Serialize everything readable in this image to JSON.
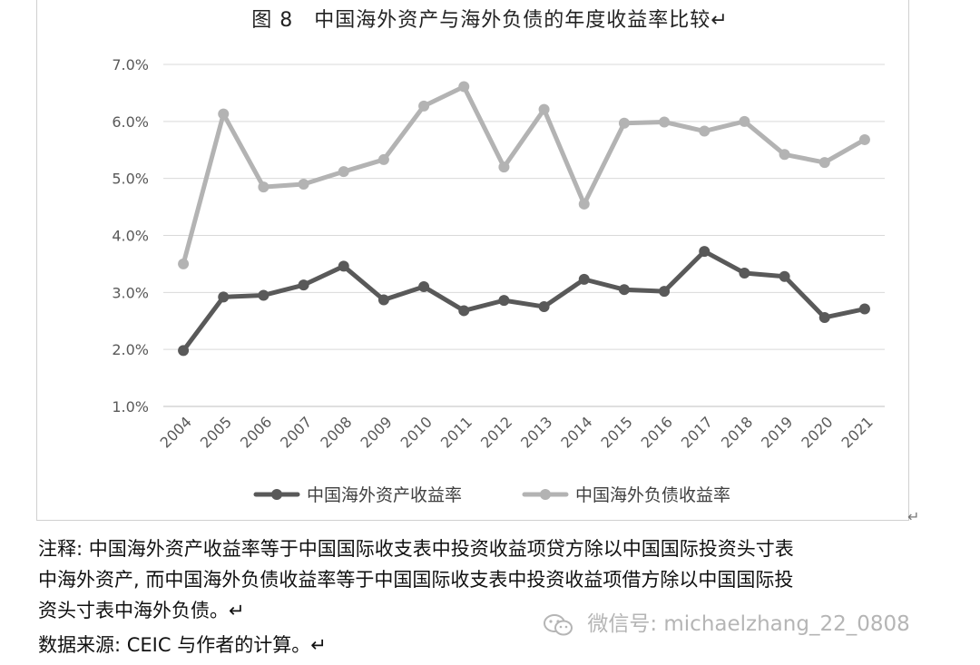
{
  "figure": {
    "title": "图 8　中国海外资产与海外负债的年度收益率比较↵"
  },
  "chart_data": {
    "type": "line",
    "title": "",
    "xlabel": "",
    "ylabel": "",
    "categories": [
      "2004",
      "2005",
      "2006",
      "2007",
      "2008",
      "2009",
      "2010",
      "2011",
      "2012",
      "2013",
      "2014",
      "2015",
      "2016",
      "2017",
      "2018",
      "2019",
      "2020",
      "2021"
    ],
    "y_ticks": [
      "1.0%",
      "2.0%",
      "3.0%",
      "4.0%",
      "5.0%",
      "6.0%",
      "7.0%"
    ],
    "ylim": [
      1.0,
      7.0
    ],
    "y_unit": "%",
    "grid": "horizontal",
    "legend_position": "bottom",
    "series": [
      {
        "name": "中国海外资产收益率",
        "color": "#595959",
        "values": [
          1.98,
          2.92,
          2.95,
          3.13,
          3.46,
          2.87,
          3.1,
          2.68,
          2.86,
          2.75,
          3.23,
          3.05,
          3.02,
          3.72,
          3.34,
          3.28,
          2.56,
          2.71
        ]
      },
      {
        "name": "中国海外负债收益率",
        "color": "#b3b3b3",
        "values": [
          3.5,
          6.13,
          4.85,
          4.9,
          5.12,
          5.33,
          6.27,
          6.61,
          5.2,
          6.21,
          4.55,
          5.97,
          5.99,
          5.83,
          6.0,
          5.42,
          5.28,
          5.68
        ]
      }
    ]
  },
  "notes": {
    "line1": "注释: 中国海外资产收益率等于中国国际收支表中投资收益项贷方除以中国国际投资头寸表",
    "line2": "中海外资产, 而中国海外负债收益率等于中国国际收支表中投资收益项借方除以中国国际投",
    "line3": "资头寸表中海外负债。↵",
    "source": "数据来源:  CEIC 与作者的计算。↵"
  },
  "return_mark": "↵",
  "watermark": {
    "icon": "wechat-icon",
    "text": "微信号: michaelzhang_22_0808"
  }
}
